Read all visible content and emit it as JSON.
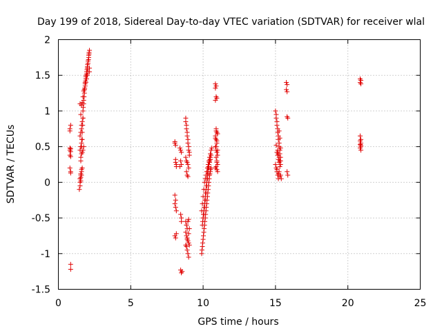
{
  "chart_data": {
    "type": "scatter",
    "title": "Day 199 of 2018, Sidereal Day-to-day VTEC variation (SDTVAR) for receiver wlal",
    "xlabel": "GPS time / hours",
    "ylabel": "SDTVAR / TECUs",
    "xlim": [
      0,
      25
    ],
    "ylim": [
      -1.5,
      2
    ],
    "xticks": [
      0,
      5,
      10,
      15,
      20,
      25
    ],
    "xtick_labels": [
      "0",
      "5",
      "10",
      "15",
      "20",
      "25"
    ],
    "yticks": [
      -1.5,
      -1,
      -0.5,
      0,
      0.5,
      1,
      1.5,
      2
    ],
    "ytick_labels": [
      "-1.5",
      "-1",
      "-0.5",
      "0",
      "0.5",
      "1",
      "1.5",
      "2"
    ],
    "grid": true,
    "marker": "plus",
    "marker_color": "#e00000",
    "series": [
      {
        "name": "SDTVAR",
        "x": [
          0.8,
          0.8,
          0.8,
          0.85,
          0.85,
          0.85,
          0.8,
          0.85,
          0.85,
          0.8,
          0.85,
          0.8,
          0.85,
          0.85,
          1.45,
          1.5,
          1.55,
          1.55,
          1.6,
          1.6,
          1.62,
          1.65,
          1.68,
          1.7,
          1.7,
          1.72,
          1.75,
          1.75,
          1.78,
          1.8,
          1.8,
          1.82,
          1.85,
          1.85,
          1.88,
          1.9,
          1.9,
          1.92,
          1.95,
          1.95,
          1.98,
          2.0,
          2.0,
          2.02,
          2.05,
          2.05,
          2.08,
          2.1,
          2.1,
          2.12,
          2.12,
          2.15,
          2.15,
          2.15,
          1.5,
          1.55,
          1.5,
          1.55,
          1.6,
          1.5,
          1.55,
          1.6,
          1.55,
          1.5,
          1.6,
          1.65,
          1.5,
          1.55,
          1.6,
          1.6,
          1.65,
          1.7,
          1.55,
          1.5,
          1.6,
          1.65,
          1.7,
          1.75,
          1.8,
          1.85,
          1.95,
          2.0,
          2.05,
          1.9,
          1.55,
          1.6,
          1.65,
          1.7,
          1.75,
          1.6,
          1.65,
          8.05,
          8.05,
          8.1,
          8.1,
          8.1,
          8.15,
          8.15,
          8.05,
          8.1,
          8.05,
          8.05,
          8.1,
          8.15,
          8.1,
          8.15,
          8.4,
          8.45,
          8.5,
          8.45,
          8.5,
          8.4,
          8.45,
          8.5,
          8.5,
          8.55,
          8.45,
          8.5,
          8.8,
          8.8,
          8.85,
          8.85,
          8.9,
          8.9,
          8.95,
          8.95,
          9.0,
          9.0,
          9.05,
          9.05,
          8.8,
          8.85,
          8.9,
          8.95,
          9.0,
          8.85,
          8.9,
          8.95,
          8.8,
          8.85,
          8.9,
          8.8,
          8.85,
          8.9,
          8.95,
          9.0,
          9.05,
          8.85,
          8.9,
          8.95,
          9.0,
          8.8,
          8.9,
          9.0,
          9.05,
          8.85,
          8.95,
          9.0,
          9.9,
          9.92,
          9.95,
          9.97,
          10.0,
          10.02,
          10.05,
          10.07,
          10.1,
          10.12,
          10.15,
          10.17,
          10.2,
          10.22,
          10.25,
          10.27,
          10.3,
          10.32,
          10.35,
          10.37,
          10.4,
          10.42,
          10.45,
          10.47,
          10.5,
          10.52,
          10.55,
          9.95,
          9.97,
          10.0,
          10.02,
          10.05,
          10.07,
          10.1,
          10.12,
          10.15,
          10.17,
          10.2,
          10.22,
          10.25,
          10.27,
          10.3,
          10.32,
          10.35,
          10.37,
          10.4,
          10.42,
          10.45,
          10.47,
          10.5,
          9.9,
          9.95,
          10.0,
          10.05,
          10.1,
          10.15,
          10.2,
          10.25,
          10.3,
          10.35,
          10.4,
          10.45,
          10.5,
          10.55,
          10.6,
          10.0,
          10.05,
          10.1,
          10.15,
          10.2,
          10.25,
          10.3,
          10.35,
          10.4,
          10.45,
          10.5,
          10.55,
          10.85,
          10.9,
          10.85,
          10.9,
          10.95,
          10.85,
          10.9,
          10.95,
          11.0,
          10.85,
          10.9,
          10.95,
          10.85,
          10.9,
          10.95,
          11.0,
          10.9,
          10.95,
          11.0,
          10.9,
          10.85,
          10.95,
          11.0,
          10.9,
          10.95,
          10.85,
          10.9,
          11.0,
          10.95,
          15.0,
          15.05,
          15.05,
          15.1,
          15.1,
          15.15,
          15.15,
          15.2,
          15.2,
          15.25,
          15.25,
          15.3,
          15.3,
          15.35,
          15.35,
          15.0,
          15.05,
          15.1,
          15.15,
          15.2,
          15.25,
          15.3,
          15.35,
          15.1,
          15.15,
          15.2,
          15.25,
          15.3,
          15.1,
          15.2,
          15.3,
          15.05,
          15.15,
          15.25,
          15.35,
          15.2,
          15.3,
          15.25,
          15.35,
          15.4,
          15.75,
          15.8,
          15.75,
          15.8,
          15.8,
          15.85,
          15.8,
          15.85,
          20.85,
          20.9,
          20.85,
          20.9,
          20.85,
          20.9,
          20.85,
          20.9,
          20.85,
          20.9,
          20.85,
          20.9,
          20.9
        ],
        "y": [
          0.48,
          0.45,
          0.38,
          0.47,
          0.43,
          0.36,
          0.2,
          0.15,
          0.13,
          0.72,
          0.8,
          0.75,
          -1.15,
          -1.22,
          -0.1,
          0.05,
          0.1,
          0.3,
          0.4,
          0.5,
          0.6,
          0.7,
          0.8,
          0.9,
          1.0,
          1.05,
          1.1,
          1.15,
          1.2,
          1.25,
          1.3,
          1.32,
          1.35,
          1.4,
          1.42,
          1.45,
          1.48,
          1.5,
          1.52,
          1.55,
          1.58,
          1.6,
          1.62,
          1.65,
          1.67,
          1.7,
          1.72,
          1.75,
          1.78,
          1.8,
          1.82,
          1.85,
          1.6,
          1.55,
          0.0,
          0.02,
          0.05,
          0.07,
          0.1,
          -0.05,
          0.12,
          0.15,
          0.5,
          0.45,
          0.55,
          0.6,
          0.65,
          0.7,
          0.75,
          0.8,
          0.85,
          0.9,
          0.95,
          1.1,
          1.08,
          1.12,
          1.2,
          1.28,
          1.3,
          1.38,
          1.45,
          1.5,
          1.55,
          1.4,
          0.35,
          0.4,
          0.42,
          0.45,
          0.5,
          0.18,
          0.2,
          0.57,
          0.55,
          0.52,
          0.32,
          0.28,
          0.25,
          0.22,
          -0.18,
          -0.25,
          -0.3,
          -0.75,
          -0.78,
          -0.72,
          -0.35,
          -0.4,
          0.48,
          0.45,
          0.42,
          0.3,
          0.25,
          0.22,
          -0.45,
          -0.5,
          -0.55,
          -1.25,
          -1.23,
          -1.27,
          0.9,
          0.85,
          0.8,
          0.75,
          0.7,
          0.65,
          0.6,
          0.55,
          0.5,
          0.45,
          0.42,
          0.38,
          0.35,
          0.3,
          0.28,
          0.25,
          0.2,
          0.15,
          0.1,
          0.08,
          -0.55,
          -0.6,
          -0.65,
          -0.7,
          -0.75,
          -0.78,
          -0.82,
          -0.85,
          -0.88,
          -0.9,
          -0.95,
          -1.0,
          -1.05,
          -0.88,
          -0.8,
          -0.72,
          -0.65,
          -0.6,
          -0.55,
          -0.52,
          -1.0,
          -0.95,
          -0.9,
          -0.85,
          -0.8,
          -0.75,
          -0.7,
          -0.65,
          -0.6,
          -0.55,
          -0.5,
          -0.45,
          -0.4,
          -0.35,
          -0.3,
          -0.25,
          -0.2,
          -0.15,
          -0.1,
          -0.05,
          0.0,
          0.05,
          0.1,
          0.12,
          0.15,
          0.18,
          0.2,
          -0.6,
          -0.55,
          -0.5,
          -0.45,
          -0.4,
          -0.35,
          -0.3,
          -0.25,
          -0.2,
          -0.15,
          -0.1,
          -0.05,
          0.0,
          0.05,
          0.1,
          0.15,
          0.2,
          0.22,
          0.25,
          0.28,
          0.3,
          0.32,
          0.35,
          -0.4,
          -0.3,
          -0.2,
          -0.1,
          0.0,
          0.05,
          0.1,
          0.15,
          0.2,
          0.25,
          0.3,
          0.35,
          0.4,
          0.45,
          0.48,
          -0.5,
          -0.45,
          -0.35,
          -0.25,
          -0.15,
          -0.05,
          0.05,
          0.12,
          0.2,
          0.28,
          0.32,
          0.38,
          1.38,
          1.35,
          1.32,
          1.2,
          1.18,
          1.15,
          0.75,
          0.7,
          0.68,
          0.65,
          0.6,
          0.55,
          0.5,
          0.45,
          0.42,
          0.38,
          0.35,
          0.3,
          0.25,
          0.22,
          0.2,
          0.18,
          0.15,
          0.5,
          0.58,
          0.62,
          0.72,
          0.45,
          0.28,
          1.0,
          0.95,
          0.9,
          0.85,
          0.8,
          0.75,
          0.7,
          0.65,
          0.6,
          0.55,
          0.5,
          0.45,
          0.4,
          0.35,
          0.3,
          0.25,
          0.2,
          0.15,
          0.1,
          0.05,
          0.72,
          0.62,
          0.48,
          0.42,
          0.38,
          0.32,
          0.28,
          0.22,
          0.18,
          0.12,
          0.08,
          0.52,
          0.45,
          0.35,
          0.25,
          0.4,
          0.3,
          0.15,
          0.1,
          0.05,
          1.4,
          1.37,
          1.3,
          1.27,
          0.92,
          0.9,
          0.15,
          0.1,
          1.45,
          1.43,
          1.4,
          1.38,
          0.65,
          0.6,
          0.58,
          0.55,
          0.53,
          0.5,
          0.48,
          0.45,
          0.52
        ]
      }
    ]
  }
}
